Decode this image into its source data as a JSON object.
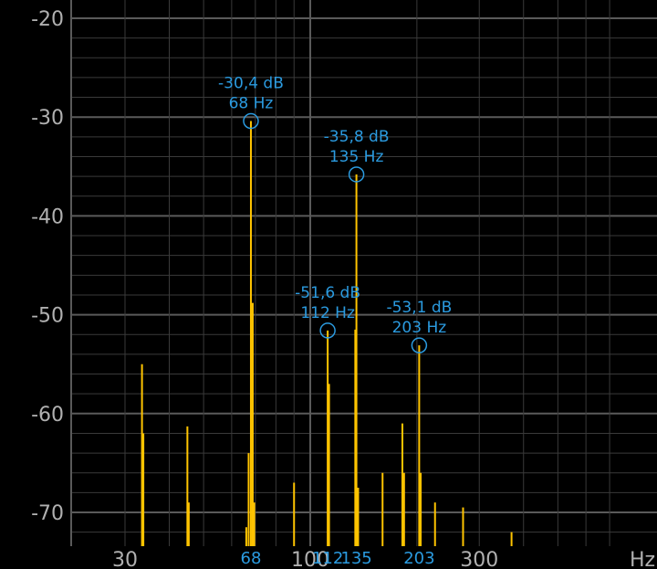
{
  "chart_data": {
    "type": "bar",
    "xscale": "log",
    "xlim": [
      20,
      700
    ],
    "ylim": [
      -72.5,
      -20
    ],
    "x_unit": "Hz",
    "y_ticks": [
      {
        "value": -20,
        "label": "-20"
      },
      {
        "value": -30,
        "label": "-30"
      },
      {
        "value": -40,
        "label": "-40"
      },
      {
        "value": -50,
        "label": "-50"
      },
      {
        "value": -60,
        "label": "-60"
      },
      {
        "value": -70,
        "label": "-70"
      }
    ],
    "x_ticks": [
      {
        "value": 30,
        "label": "30"
      },
      {
        "value": 100,
        "label": "100"
      },
      {
        "value": 300,
        "label": "300"
      }
    ],
    "x_peak_ticks": [
      {
        "value": 68,
        "label": "68"
      },
      {
        "value": 112,
        "label": "112"
      },
      {
        "value": 135,
        "label": "135"
      },
      {
        "value": 203,
        "label": "203"
      }
    ],
    "peaks": [
      {
        "x": 68,
        "y": -30.4,
        "db_label": "-30,4 dB",
        "hz_label": "68 Hz"
      },
      {
        "x": 135,
        "y": -35.8,
        "db_label": "-35,8 dB",
        "hz_label": "135 Hz"
      },
      {
        "x": 112,
        "y": -51.6,
        "db_label": "-51,6 dB",
        "hz_label": "112 Hz"
      },
      {
        "x": 203,
        "y": -53.1,
        "db_label": "-53,1 dB",
        "hz_label": "203 Hz"
      }
    ],
    "spectrum": [
      {
        "x": 33.5,
        "y": -55.0
      },
      {
        "x": 33.8,
        "y": -62.0
      },
      {
        "x": 45,
        "y": -61.3
      },
      {
        "x": 45.4,
        "y": -69.0
      },
      {
        "x": 66,
        "y": -71.5
      },
      {
        "x": 67,
        "y": -64.0
      },
      {
        "x": 68,
        "y": -30.4
      },
      {
        "x": 68.8,
        "y": -48.8
      },
      {
        "x": 69.5,
        "y": -69.0
      },
      {
        "x": 90,
        "y": -67.0
      },
      {
        "x": 112,
        "y": -51.6
      },
      {
        "x": 113,
        "y": -57.0
      },
      {
        "x": 135,
        "y": -35.8
      },
      {
        "x": 134,
        "y": -51.5
      },
      {
        "x": 136.5,
        "y": -67.5
      },
      {
        "x": 160,
        "y": -66.0
      },
      {
        "x": 182,
        "y": -61.0
      },
      {
        "x": 184,
        "y": -66.0
      },
      {
        "x": 203,
        "y": -53.1
      },
      {
        "x": 205,
        "y": -66.0
      },
      {
        "x": 225,
        "y": -69.0
      },
      {
        "x": 270,
        "y": -69.5
      },
      {
        "x": 370,
        "y": -72.0
      }
    ],
    "colors": {
      "bar": "#ffc400",
      "peak": "#2b9be0",
      "grid_major": "#5a5a5a",
      "grid_minor": "#3a3a3a",
      "background": "#000000"
    }
  }
}
